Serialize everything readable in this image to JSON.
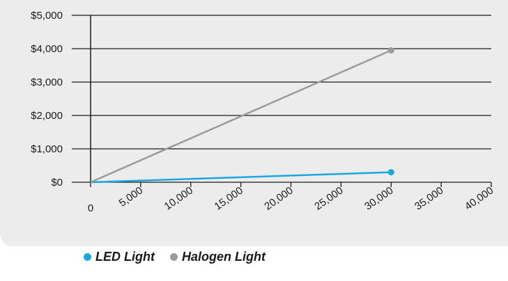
{
  "chart_data": {
    "type": "line",
    "title": "",
    "xlabel": "",
    "ylabel": "",
    "xlim": [
      0,
      40000
    ],
    "ylim": [
      0,
      5000
    ],
    "x_ticks": [
      "0",
      "5,000",
      "10,000",
      "15,000",
      "20,000",
      "25,000",
      "30,000",
      "35,000",
      "40,000"
    ],
    "x_tick_values": [
      0,
      5000,
      10000,
      15000,
      20000,
      25000,
      30000,
      35000,
      40000
    ],
    "y_ticks": [
      "$0",
      "$1,000",
      "$2,000",
      "$3,000",
      "$4,000",
      "$5,000"
    ],
    "y_tick_values": [
      0,
      1000,
      2000,
      3000,
      4000,
      5000
    ],
    "grid": "horizontal",
    "legend_position": "bottom",
    "series": [
      {
        "name": "LED Light",
        "color": "#1aa7e0",
        "x": [
          0,
          30000
        ],
        "y": [
          0,
          300
        ]
      },
      {
        "name": "Halogen Light",
        "color": "#9b9b9b",
        "x": [
          0,
          30000
        ],
        "y": [
          0,
          3950
        ]
      }
    ]
  },
  "colors": {
    "panel_background": "#ececec",
    "gridline": "#1a1a1a"
  }
}
